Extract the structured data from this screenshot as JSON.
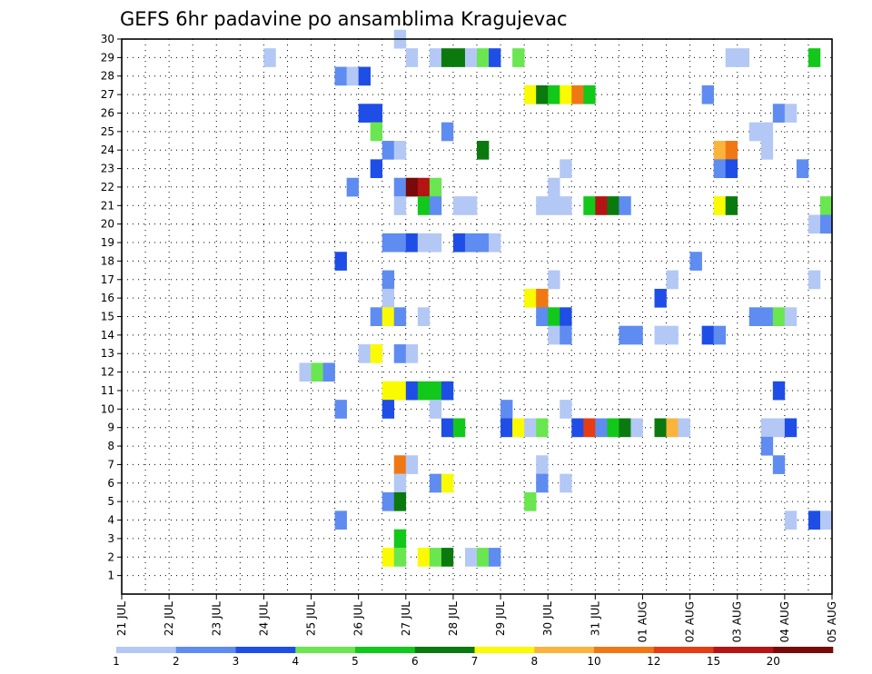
{
  "chart_data": {
    "type": "heatmap",
    "title": "GEFS 6hr padavine po ansamblima Kragujevac",
    "xlabel": "",
    "ylabel": "",
    "y_ticks": [
      "1",
      "2",
      "3",
      "4",
      "5",
      "6",
      "7",
      "8",
      "9",
      "10",
      "11",
      "12",
      "13",
      "14",
      "15",
      "16",
      "17",
      "18",
      "19",
      "20",
      "21",
      "22",
      "23",
      "24",
      "25",
      "26",
      "27",
      "28",
      "29",
      "30"
    ],
    "x_ticks": [
      "21 JUL",
      "22 JUL",
      "23 JUL",
      "24 JUL",
      "25 JUL",
      "26 JUL",
      "27 JUL",
      "28 JUL",
      "29 JUL",
      "30 JUL",
      "31 JUL",
      "01 AUG",
      "02 AUG",
      "03 AUG",
      "04 AUG",
      "05 AUG"
    ],
    "x_step_hours": 6,
    "y_range": [
      0,
      30
    ],
    "grid": true,
    "legend": {
      "placement": "bottom",
      "labels": [
        "1",
        "2",
        "3",
        "4",
        "5",
        "6",
        "7",
        "8",
        "10",
        "12",
        "15",
        "20"
      ],
      "colors": [
        "#b4c8f5",
        "#5f8cf0",
        "#1e4ee6",
        "#6ae650",
        "#12c81a",
        "#0a7a0e",
        "#fafa00",
        "#fab43c",
        "#f07814",
        "#e63c14",
        "#b41414",
        "#780a0a"
      ]
    },
    "colors": {
      "1": "#b4c8f5",
      "2": "#5f8cf0",
      "3": "#1e4ee6",
      "4": "#6ae650",
      "5": "#12c81a",
      "6": "#0a7a0e",
      "7": "#fafa00",
      "8": "#fab43c",
      "10": "#f07814",
      "12": "#e63c14",
      "15": "#b41414",
      "20": "#780a0a"
    },
    "cells": [
      {
        "m": 30,
        "c": [
          [
            23,
            1
          ]
        ]
      },
      {
        "m": 29,
        "c": [
          [
            12,
            1
          ],
          [
            24,
            1
          ],
          [
            26,
            1
          ],
          [
            27,
            6
          ],
          [
            28,
            6
          ],
          [
            29,
            1
          ],
          [
            30,
            4
          ],
          [
            31,
            3
          ],
          [
            33,
            4
          ],
          [
            51,
            1
          ],
          [
            52,
            1
          ],
          [
            58,
            5
          ]
        ]
      },
      {
        "m": 28,
        "c": [
          [
            18,
            2
          ],
          [
            19,
            1
          ],
          [
            20,
            3
          ]
        ]
      },
      {
        "m": 27,
        "c": [
          [
            34,
            7
          ],
          [
            35,
            6
          ],
          [
            36,
            5
          ],
          [
            37,
            7
          ],
          [
            38,
            10
          ],
          [
            39,
            5
          ],
          [
            49,
            2
          ]
        ]
      },
      {
        "m": 26,
        "c": [
          [
            20,
            3
          ],
          [
            21,
            3
          ],
          [
            55,
            2
          ],
          [
            56,
            1
          ]
        ]
      },
      {
        "m": 25,
        "c": [
          [
            21,
            4
          ],
          [
            27,
            2
          ],
          [
            53,
            1
          ],
          [
            54,
            1
          ]
        ]
      },
      {
        "m": 24,
        "c": [
          [
            22,
            2
          ],
          [
            23,
            1
          ],
          [
            30,
            6
          ],
          [
            50,
            8
          ],
          [
            51,
            10
          ],
          [
            54,
            1
          ]
        ]
      },
      {
        "m": 23,
        "c": [
          [
            21,
            3
          ],
          [
            37,
            1
          ],
          [
            50,
            2
          ],
          [
            51,
            3
          ],
          [
            57,
            2
          ]
        ]
      },
      {
        "m": 22,
        "c": [
          [
            19,
            2
          ],
          [
            23,
            2
          ],
          [
            24,
            20
          ],
          [
            25,
            15
          ],
          [
            26,
            4
          ],
          [
            36,
            1
          ]
        ]
      },
      {
        "m": 21,
        "c": [
          [
            23,
            1
          ],
          [
            25,
            5
          ],
          [
            26,
            2
          ],
          [
            28,
            1
          ],
          [
            29,
            1
          ],
          [
            35,
            1
          ],
          [
            36,
            1
          ],
          [
            37,
            1
          ],
          [
            39,
            5
          ],
          [
            40,
            15
          ],
          [
            41,
            6
          ],
          [
            42,
            2
          ],
          [
            50,
            7
          ],
          [
            51,
            6
          ],
          [
            59,
            4
          ]
        ]
      },
      {
        "m": 20,
        "c": [
          [
            58,
            1
          ],
          [
            59,
            2
          ]
        ]
      },
      {
        "m": 19,
        "c": [
          [
            22,
            2
          ],
          [
            23,
            2
          ],
          [
            24,
            3
          ],
          [
            25,
            1
          ],
          [
            26,
            1
          ],
          [
            28,
            3
          ],
          [
            29,
            2
          ],
          [
            30,
            2
          ],
          [
            31,
            1
          ]
        ]
      },
      {
        "m": 18,
        "c": [
          [
            18,
            3
          ],
          [
            48,
            2
          ]
        ]
      },
      {
        "m": 17,
        "c": [
          [
            22,
            2
          ],
          [
            36,
            1
          ],
          [
            46,
            1
          ],
          [
            58,
            1
          ]
        ]
      },
      {
        "m": 16,
        "c": [
          [
            22,
            1
          ],
          [
            34,
            7
          ],
          [
            35,
            10
          ],
          [
            45,
            3
          ]
        ]
      },
      {
        "m": 15,
        "c": [
          [
            21,
            2
          ],
          [
            22,
            7
          ],
          [
            23,
            2
          ],
          [
            25,
            1
          ],
          [
            35,
            2
          ],
          [
            36,
            5
          ],
          [
            37,
            3
          ],
          [
            53,
            2
          ],
          [
            54,
            2
          ],
          [
            55,
            4
          ],
          [
            56,
            1
          ]
        ]
      },
      {
        "m": 14,
        "c": [
          [
            36,
            1
          ],
          [
            37,
            2
          ],
          [
            42,
            2
          ],
          [
            43,
            2
          ],
          [
            45,
            1
          ],
          [
            46,
            1
          ],
          [
            49,
            3
          ],
          [
            50,
            2
          ]
        ]
      },
      {
        "m": 13,
        "c": [
          [
            20,
            1
          ],
          [
            21,
            7
          ],
          [
            23,
            2
          ],
          [
            24,
            1
          ]
        ]
      },
      {
        "m": 12,
        "c": [
          [
            15,
            1
          ],
          [
            16,
            4
          ],
          [
            17,
            2
          ]
        ]
      },
      {
        "m": 11,
        "c": [
          [
            22,
            7
          ],
          [
            23,
            7
          ],
          [
            24,
            3
          ],
          [
            25,
            5
          ],
          [
            26,
            5
          ],
          [
            27,
            3
          ],
          [
            55,
            3
          ]
        ]
      },
      {
        "m": 10,
        "c": [
          [
            18,
            2
          ],
          [
            22,
            3
          ],
          [
            26,
            1
          ],
          [
            32,
            2
          ],
          [
            37,
            1
          ]
        ]
      },
      {
        "m": 9,
        "c": [
          [
            27,
            3
          ],
          [
            28,
            5
          ],
          [
            32,
            3
          ],
          [
            33,
            7
          ],
          [
            34,
            1
          ],
          [
            35,
            4
          ],
          [
            38,
            3
          ],
          [
            39,
            12
          ],
          [
            40,
            2
          ],
          [
            41,
            5
          ],
          [
            42,
            6
          ],
          [
            43,
            1
          ],
          [
            45,
            6
          ],
          [
            46,
            8
          ],
          [
            47,
            1
          ],
          [
            54,
            1
          ],
          [
            55,
            1
          ],
          [
            56,
            3
          ]
        ]
      },
      {
        "m": 8,
        "c": [
          [
            54,
            2
          ]
        ]
      },
      {
        "m": 7,
        "c": [
          [
            23,
            10
          ],
          [
            24,
            1
          ],
          [
            35,
            1
          ],
          [
            55,
            2
          ]
        ]
      },
      {
        "m": 6,
        "c": [
          [
            23,
            1
          ],
          [
            26,
            2
          ],
          [
            27,
            7
          ],
          [
            35,
            2
          ],
          [
            37,
            1
          ]
        ]
      },
      {
        "m": 5,
        "c": [
          [
            22,
            2
          ],
          [
            23,
            6
          ],
          [
            34,
            4
          ]
        ]
      },
      {
        "m": 4,
        "c": [
          [
            18,
            2
          ],
          [
            56,
            1
          ],
          [
            58,
            3
          ],
          [
            59,
            1
          ]
        ]
      },
      {
        "m": 3,
        "c": [
          [
            23,
            5
          ]
        ]
      },
      {
        "m": 2,
        "c": [
          [
            22,
            7
          ],
          [
            23,
            4
          ],
          [
            25,
            7
          ],
          [
            26,
            4
          ],
          [
            27,
            6
          ],
          [
            29,
            1
          ],
          [
            30,
            4
          ],
          [
            31,
            2
          ]
        ]
      }
    ]
  }
}
